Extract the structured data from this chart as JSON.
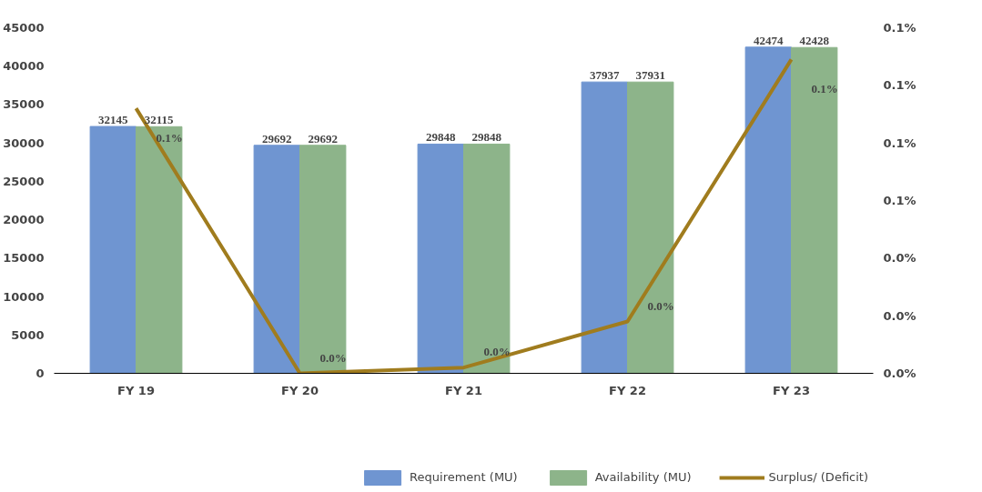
{
  "chart_data": {
    "type": "bar",
    "categories": [
      "FY 19",
      "FY 20",
      "FY 21",
      "FY 22",
      "FY 23"
    ],
    "series": [
      {
        "name": "Requirement (MU)",
        "color": "#6f95d1",
        "values": [
          32145,
          29692,
          29848,
          37937,
          42474
        ],
        "value_labels": [
          "32145",
          "29692",
          "29848",
          "37937",
          "42474"
        ]
      },
      {
        "name": "Availability (MU)",
        "color": "#8db48a",
        "values": [
          32115,
          29692,
          29848,
          37931,
          42428
        ],
        "value_labels": [
          "32115",
          "29692",
          "29848",
          "37931",
          "42428"
        ]
      },
      {
        "name": "Surplus/ (Deficit)",
        "type": "line",
        "axis": "y2",
        "color": "#a07c1e",
        "values": [
          0.092,
          0.0,
          0.002,
          0.018,
          0.109
        ],
        "value_labels": [
          "0.1%",
          "0.0%",
          "0.0%",
          "0.0%",
          "0.1%"
        ]
      }
    ],
    "ylim": [
      0,
      45000
    ],
    "yticks": [
      0,
      5000,
      10000,
      15000,
      20000,
      25000,
      30000,
      35000,
      40000,
      45000
    ],
    "y2lim": [
      0,
      0.12
    ],
    "y2ticks": [
      {
        "value": 0,
        "label": "0.0%"
      },
      {
        "value": 0.02,
        "label": "0.0%"
      },
      {
        "value": 0.04,
        "label": "0.0%"
      },
      {
        "value": 0.06,
        "label": "0.1%"
      },
      {
        "value": 0.08,
        "label": "0.1%"
      },
      {
        "value": 0.1,
        "label": "0.1%"
      },
      {
        "value": 0.12,
        "label": "0.1%"
      }
    ],
    "grid": false,
    "legend": "bottom"
  }
}
